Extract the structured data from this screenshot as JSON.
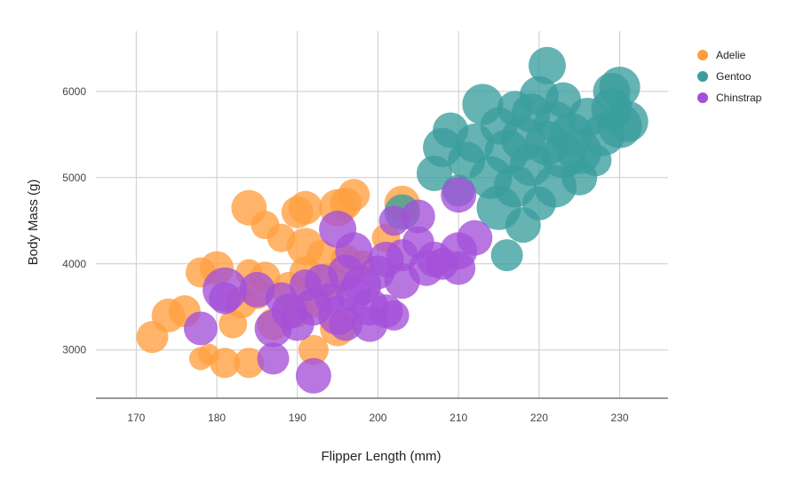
{
  "chart_data": {
    "type": "scatter",
    "title": "",
    "xlabel": "Flipper Length (mm)",
    "ylabel": "Body Mass (g)",
    "xlim": [
      165,
      236
    ],
    "ylim": [
      2440,
      6700
    ],
    "xticks": [
      170,
      180,
      190,
      200,
      210,
      220,
      230
    ],
    "yticks": [
      3000,
      4000,
      5000,
      6000
    ],
    "grid": true,
    "legend_position": "top-right",
    "bubble_size_encoded": true,
    "series": [
      {
        "name": "Adelie",
        "color": "#ff9f40",
        "points": [
          [
            172,
            3150,
            18
          ],
          [
            174,
            3400,
            19
          ],
          [
            176,
            3450,
            18
          ],
          [
            178,
            3900,
            17
          ],
          [
            178,
            2900,
            13
          ],
          [
            179,
            2950,
            12
          ],
          [
            180,
            3950,
            19
          ],
          [
            181,
            2850,
            17
          ],
          [
            182,
            3300,
            16
          ],
          [
            183,
            3550,
            18
          ],
          [
            184,
            4650,
            20
          ],
          [
            184,
            3900,
            15
          ],
          [
            184,
            2850,
            17
          ],
          [
            185,
            3650,
            17
          ],
          [
            186,
            3850,
            17
          ],
          [
            186,
            4450,
            16
          ],
          [
            187,
            3300,
            18
          ],
          [
            188,
            4300,
            16
          ],
          [
            189,
            3700,
            20
          ],
          [
            190,
            4600,
            18
          ],
          [
            190,
            3450,
            18
          ],
          [
            191,
            4650,
            19
          ],
          [
            191,
            4200,
            21
          ],
          [
            191,
            3900,
            18
          ],
          [
            192,
            3550,
            17
          ],
          [
            192,
            3000,
            17
          ],
          [
            193,
            4100,
            17
          ],
          [
            194,
            3800,
            20
          ],
          [
            195,
            4650,
            21
          ],
          [
            195,
            3250,
            20
          ],
          [
            196,
            4700,
            18
          ],
          [
            196,
            4050,
            17
          ],
          [
            197,
            4800,
            18
          ],
          [
            198,
            4000,
            15
          ],
          [
            201,
            4300,
            16
          ],
          [
            203,
            4700,
            20
          ]
        ]
      },
      {
        "name": "Gentoo",
        "color": "#3a9e9c",
        "points": [
          [
            203,
            4600,
            20
          ],
          [
            207,
            5050,
            20
          ],
          [
            208,
            5350,
            22
          ],
          [
            209,
            5550,
            20
          ],
          [
            210,
            4850,
            18
          ],
          [
            211,
            5200,
            21
          ],
          [
            212,
            5400,
            22
          ],
          [
            213,
            5850,
            23
          ],
          [
            214,
            5000,
            24
          ],
          [
            215,
            4650,
            25
          ],
          [
            215,
            5600,
            21
          ],
          [
            216,
            4100,
            18
          ],
          [
            216,
            5300,
            25
          ],
          [
            217,
            5800,
            20
          ],
          [
            217,
            4900,
            24
          ],
          [
            218,
            5450,
            25
          ],
          [
            218,
            4450,
            20
          ],
          [
            219,
            5150,
            24
          ],
          [
            219,
            5750,
            22
          ],
          [
            220,
            5950,
            22
          ],
          [
            220,
            4700,
            19
          ],
          [
            221,
            6300,
            21
          ],
          [
            221,
            5400,
            25
          ],
          [
            222,
            4900,
            24
          ],
          [
            222,
            5650,
            23
          ],
          [
            223,
            5250,
            25
          ],
          [
            223,
            5900,
            20
          ],
          [
            224,
            5500,
            24
          ],
          [
            225,
            5000,
            20
          ],
          [
            225,
            5300,
            25
          ],
          [
            226,
            5700,
            22
          ],
          [
            227,
            5200,
            18
          ],
          [
            228,
            5500,
            24
          ],
          [
            229,
            6000,
            21
          ],
          [
            229,
            5800,
            23
          ],
          [
            230,
            6050,
            23
          ],
          [
            230,
            5600,
            25
          ],
          [
            231,
            5650,
            23
          ]
        ]
      },
      {
        "name": "Chinstrap",
        "color": "#a450d8",
        "points": [
          [
            178,
            3250,
            19
          ],
          [
            181,
            3700,
            25
          ],
          [
            181,
            3600,
            18
          ],
          [
            185,
            3700,
            20
          ],
          [
            187,
            2900,
            18
          ],
          [
            187,
            3250,
            21
          ],
          [
            188,
            3600,
            18
          ],
          [
            189,
            3450,
            20
          ],
          [
            190,
            3300,
            19
          ],
          [
            191,
            3750,
            18
          ],
          [
            192,
            2700,
            20
          ],
          [
            192,
            3500,
            21
          ],
          [
            193,
            3800,
            19
          ],
          [
            194,
            3600,
            17
          ],
          [
            195,
            4400,
            21
          ],
          [
            195,
            3400,
            22
          ],
          [
            196,
            3900,
            20
          ],
          [
            196,
            3300,
            19
          ],
          [
            197,
            4150,
            21
          ],
          [
            197,
            3650,
            20
          ],
          [
            198,
            3750,
            22
          ],
          [
            199,
            3500,
            21
          ],
          [
            199,
            3300,
            20
          ],
          [
            200,
            3900,
            19
          ],
          [
            201,
            4050,
            20
          ],
          [
            201,
            3450,
            19
          ],
          [
            202,
            4500,
            17
          ],
          [
            202,
            3400,
            17
          ],
          [
            203,
            4100,
            18
          ],
          [
            203,
            3800,
            20
          ],
          [
            205,
            4550,
            19
          ],
          [
            205,
            4250,
            18
          ],
          [
            206,
            3950,
            20
          ],
          [
            207,
            4050,
            20
          ],
          [
            208,
            4000,
            18
          ],
          [
            210,
            3950,
            19
          ],
          [
            210,
            4150,
            21
          ],
          [
            210,
            4800,
            20
          ],
          [
            212,
            4300,
            20
          ]
        ]
      }
    ]
  }
}
